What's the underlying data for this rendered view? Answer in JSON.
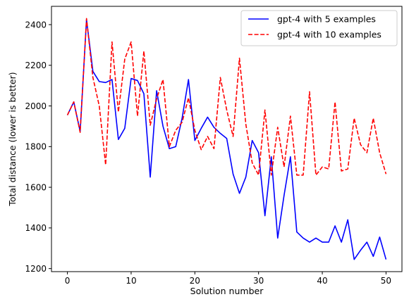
{
  "chart_data": {
    "type": "line",
    "xlabel": "Solution number",
    "ylabel": "Total distance (lower is better)",
    "xlim": [
      -2.5,
      52.5
    ],
    "ylim": [
      1185,
      2490
    ],
    "x_ticks": [
      0,
      10,
      20,
      30,
      40,
      50
    ],
    "y_ticks": [
      1200,
      1400,
      1600,
      1800,
      2000,
      2200,
      2400
    ],
    "grid": false,
    "legend_position": "top-right",
    "x": [
      0,
      1,
      2,
      3,
      4,
      5,
      6,
      7,
      8,
      9,
      10,
      11,
      12,
      13,
      14,
      15,
      16,
      17,
      18,
      19,
      20,
      21,
      22,
      23,
      24,
      25,
      26,
      27,
      28,
      29,
      30,
      31,
      32,
      33,
      34,
      35,
      36,
      37,
      38,
      39,
      40,
      41,
      42,
      43,
      44,
      45,
      46,
      47,
      48,
      49,
      50
    ],
    "series": [
      {
        "name": "gpt-4 with 5 examples",
        "color": "#0000ff",
        "style": "solid",
        "values": [
          1955,
          2020,
          1875,
          2425,
          2170,
          2120,
          2115,
          2130,
          1835,
          1890,
          2135,
          2125,
          2060,
          1650,
          2075,
          1900,
          1790,
          1800,
          1940,
          2130,
          1830,
          1890,
          1945,
          1895,
          1865,
          1840,
          1665,
          1570,
          1650,
          1830,
          1770,
          1460,
          1750,
          1350,
          1560,
          1750,
          1380,
          1350,
          1330,
          1350,
          1330,
          1330,
          1410,
          1330,
          1440,
          1245,
          1290,
          1330,
          1260,
          1355,
          1245
        ]
      },
      {
        "name": "gpt-4 with 10 examples",
        "color": "#ff0000",
        "style": "dashed",
        "values": [
          1955,
          2020,
          1870,
          2430,
          2140,
          2000,
          1710,
          2315,
          1970,
          2230,
          2315,
          1950,
          2270,
          1905,
          2035,
          2130,
          1800,
          1880,
          1920,
          2040,
          1880,
          1785,
          1850,
          1790,
          2140,
          1980,
          1850,
          2235,
          1910,
          1720,
          1660,
          1980,
          1660,
          1895,
          1700,
          1950,
          1660,
          1660,
          2070,
          1660,
          1700,
          1690,
          2020,
          1680,
          1690,
          1940,
          1810,
          1770,
          1940,
          1770,
          1665
        ]
      }
    ]
  }
}
